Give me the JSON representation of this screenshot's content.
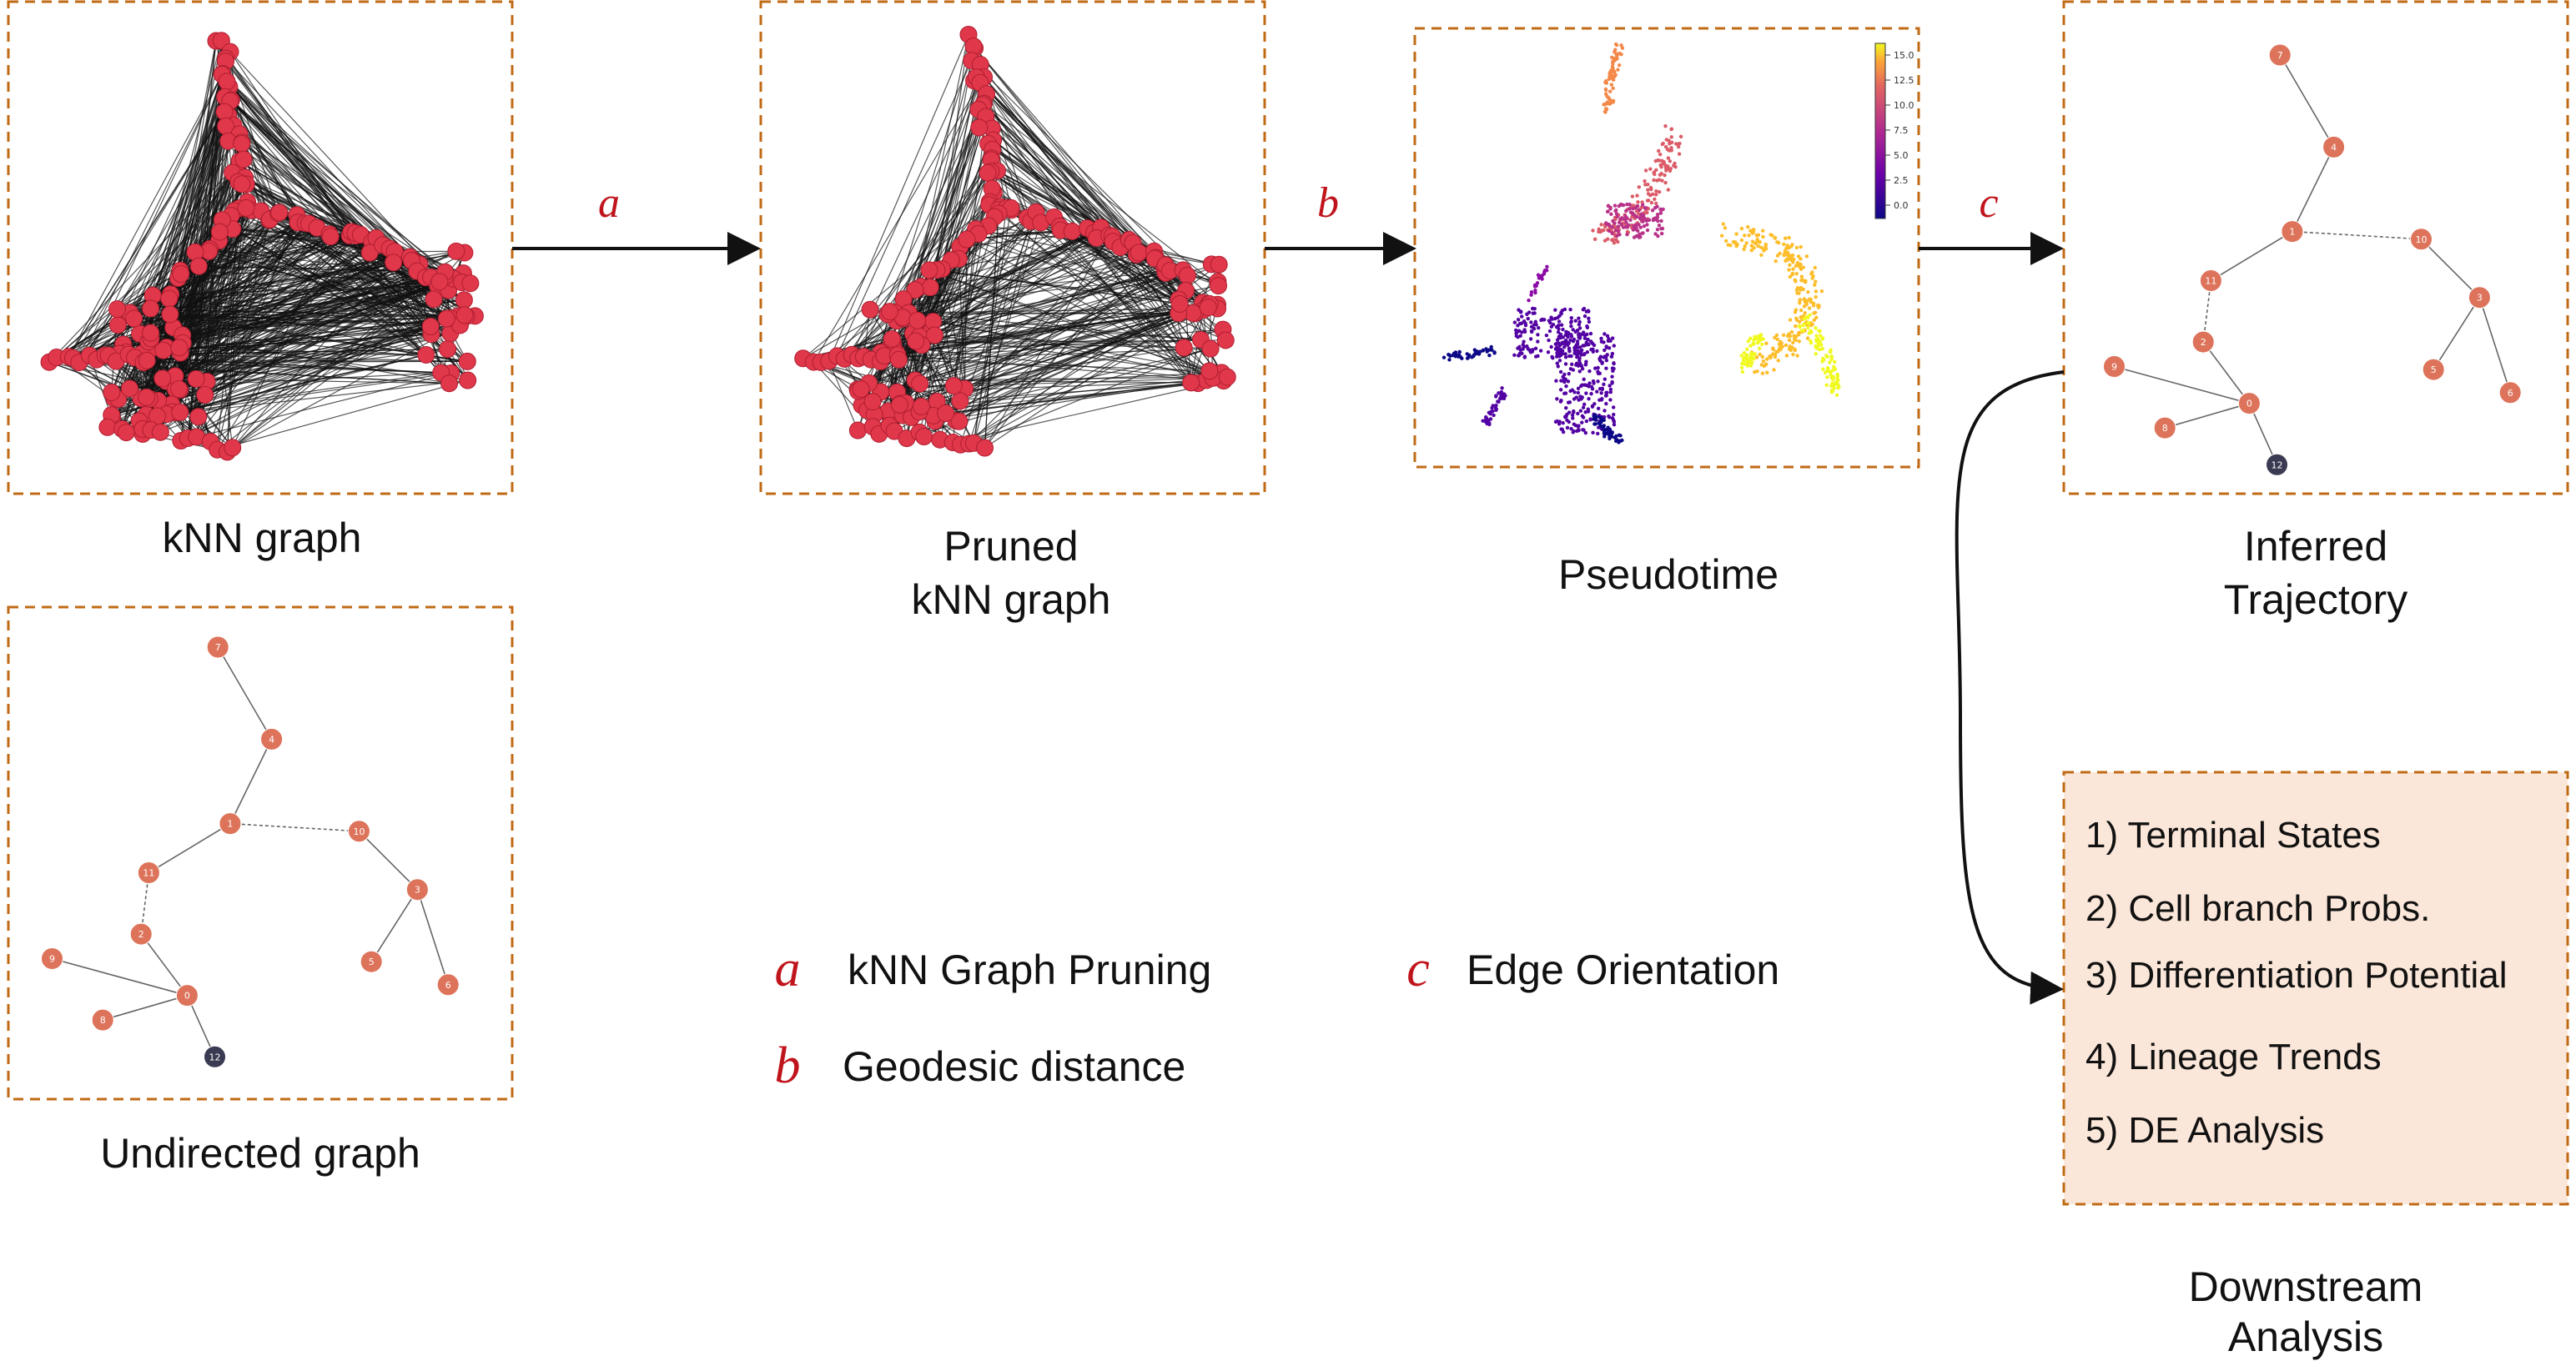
{
  "panels": {
    "knn": {
      "caption": "kNN graph"
    },
    "pruned": {
      "caption_line1": "Pruned",
      "caption_line2": "kNN graph"
    },
    "pseudotime": {
      "caption": "Pseudotime",
      "colorbar_ticks": [
        "15.0",
        "12.5",
        "10.0",
        "7.5",
        "5.0",
        "2.5",
        "0.0"
      ]
    },
    "inferred": {
      "caption_line1": "Inferred",
      "caption_line2": "Trajectory"
    },
    "undirected": {
      "caption": "Undirected graph"
    },
    "downstream": {
      "caption_line1": "Downstream",
      "caption_line2": "Analysis",
      "items": [
        "1) Terminal States",
        "2) Cell branch Probs.",
        "3) Differentiation Potential",
        "4) Lineage Trends",
        "5) DE Analysis"
      ]
    }
  },
  "steps": [
    {
      "letter": "a",
      "desc": "kNN Graph Pruning"
    },
    {
      "letter": "b",
      "desc": "Geodesic distance"
    },
    {
      "letter": "c",
      "desc": "Edge Orientation"
    }
  ],
  "tree": {
    "nodes": [
      "7",
      "4",
      "1",
      "10",
      "11",
      "3",
      "2",
      "9",
      "0",
      "5",
      "6",
      "8",
      "12"
    ],
    "edges": [
      [
        "7",
        "4"
      ],
      [
        "4",
        "1"
      ],
      [
        "1",
        "10"
      ],
      [
        "1",
        "11"
      ],
      [
        "10",
        "3"
      ],
      [
        "3",
        "5"
      ],
      [
        "3",
        "6"
      ],
      [
        "11",
        "2"
      ],
      [
        "2",
        "0"
      ],
      [
        "0",
        "9"
      ],
      [
        "0",
        "8"
      ],
      [
        "0",
        "12"
      ]
    ],
    "dashed_edges": [
      [
        "1",
        "10"
      ],
      [
        "11",
        "2"
      ]
    ],
    "node_color": "#dd735a",
    "root_color": "#3a3b52"
  },
  "colors": {
    "frame": "#c06a14",
    "knn_node": "#e0374a",
    "arrow": "#111111",
    "step_letter": "#c0141c",
    "box_fill": "#fbe7d9"
  }
}
